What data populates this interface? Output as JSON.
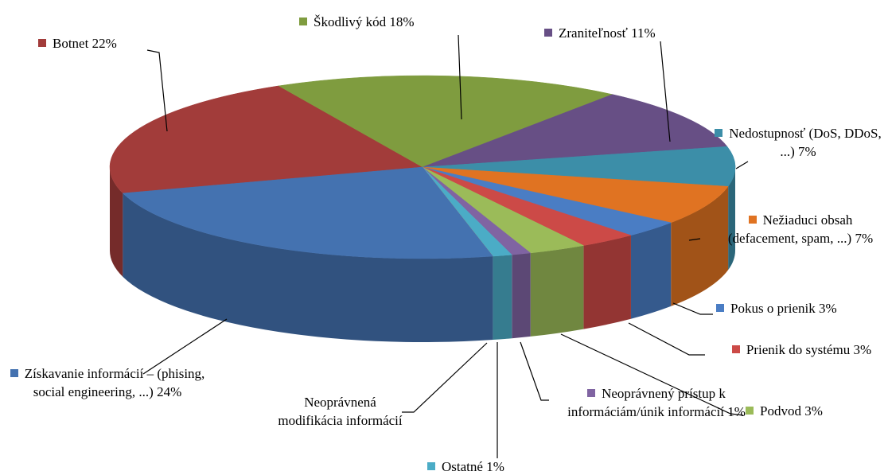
{
  "chart_data": {
    "type": "pie3d",
    "categories": [
      "Botnet",
      "Škodlivý kód",
      "Zraniteľnosť",
      "Nedostupnosť (DoS, DDoS, ...)",
      "Nežiaduci obsah (defacement, spam, ...)",
      "Pokus o prienik",
      "Prienik do systému",
      "Podvod",
      "Neoprávnený prístup k informáciám/únik informácií",
      "Ostatné",
      "Neoprávnená modifikácia informácií",
      "Získavanie informácií – (phising, social engineering, ...)"
    ],
    "values": [
      22,
      18,
      11,
      7,
      7,
      3,
      3,
      3,
      1,
      1,
      0,
      24
    ],
    "value_labels": [
      "22%",
      "18%",
      "11%",
      "7%",
      "7%",
      "3%",
      "3%",
      "3%",
      "1%",
      "1%",
      null,
      "24%"
    ],
    "colors": [
      "#a23c3a",
      "#7f9c3f",
      "#674f85",
      "#3c8ea8",
      "#e07322",
      "#4a7dc4",
      "#cc4a47",
      "#9bbb59",
      "#8064a2",
      "#4bacc6",
      "#f79646",
      "#4472b0"
    ]
  }
}
